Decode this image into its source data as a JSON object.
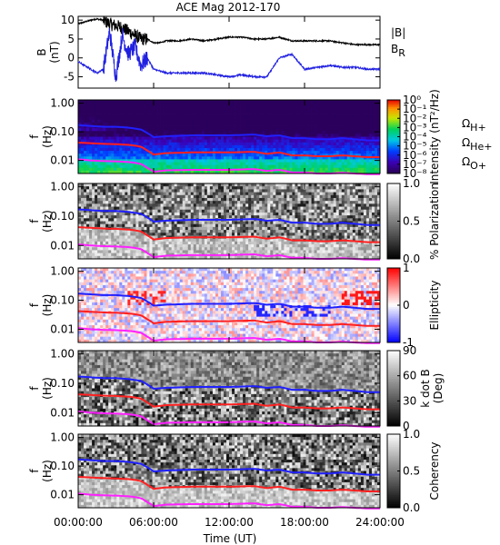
{
  "chart_data": {
    "title": "ACE Mag 2012-170",
    "type": "line",
    "x_axis": {
      "label": "Time (UT)",
      "ticks": [
        "00:00:00",
        "06:00:00",
        "12:00:00",
        "18:00:00",
        "24:00:00"
      ],
      "range_hours": [
        0,
        24
      ]
    },
    "panels": [
      {
        "name": "field",
        "type": "line",
        "ylabel_lines": [
          "B",
          "(nT)"
        ],
        "ylim": [
          -8,
          11
        ],
        "yticks": [
          "10",
          "5",
          "0",
          "-5"
        ],
        "legend": [
          {
            "label": "|B|",
            "color": "#000000"
          },
          {
            "label": "B",
            "sub": "R",
            "color": "#2020e0"
          }
        ],
        "series": [
          {
            "name": "|B|",
            "color": "#000000",
            "x": [
              0,
              0.5,
              1,
              1.5,
              2,
              2.5,
              3,
              3.5,
              4,
              4.5,
              5,
              5.5,
              6,
              6.5,
              7,
              8,
              9,
              10,
              11,
              12,
              13,
              14,
              15,
              16,
              17,
              18,
              19,
              20,
              21,
              22,
              23,
              24
            ],
            "y": [
              9,
              9.5,
              10,
              10.3,
              10,
              9,
              8.5,
              8,
              7,
              6,
              5,
              5,
              4,
              4,
              4.5,
              4.5,
              5,
              4.5,
              5,
              5.5,
              5.5,
              5,
              5,
              5.5,
              4.5,
              4.5,
              4.5,
              4.5,
              4,
              3.5,
              3.5,
              3.5
            ]
          },
          {
            "name": "B_R",
            "color": "#2020e0",
            "x": [
              0,
              0.5,
              1,
              1.5,
              2,
              2.5,
              3,
              3.5,
              4,
              4.5,
              5,
              5.5,
              6,
              6.5,
              7,
              8,
              9,
              10,
              11,
              12,
              13,
              14,
              15,
              16,
              17,
              18,
              19,
              20,
              21,
              22,
              23,
              24
            ],
            "y": [
              -1,
              -2,
              -3,
              -4,
              -3,
              7,
              -5,
              6,
              1,
              3,
              -2,
              0,
              -3,
              -3.5,
              -4,
              -4,
              -4,
              -4,
              -4.5,
              -5,
              -4.5,
              -5,
              -5,
              0,
              1,
              -3,
              -2.5,
              -2,
              -2.5,
              -2.5,
              -3,
              -3
            ]
          }
        ]
      },
      {
        "name": "intensity",
        "type": "heatmap",
        "ylabel_lines": [
          "f",
          "(Hz)"
        ],
        "cbar_label": "Intensity (nT²/Hz)",
        "cbar_ticks": [
          "10⁰",
          "10⁻¹",
          "10⁻²",
          "10⁻³",
          "10⁻⁴",
          "10⁻⁵",
          "10⁻⁶",
          "10⁻⁷",
          "10⁻⁸"
        ],
        "legend": [
          {
            "label": "Ω",
            "sub": "H+",
            "color": "#2020e0"
          },
          {
            "label": "Ω",
            "sub": "He+",
            "color": "#e02020"
          },
          {
            "label": "Ω",
            "sub": "O+",
            "color": "#e020e0"
          }
        ]
      },
      {
        "name": "polarization",
        "type": "heatmap",
        "ylabel_lines": [
          "f",
          "(Hz)"
        ],
        "cbar_label": "% Polarization",
        "cbar_ticks": [
          "1.0",
          "0.5",
          "0.0"
        ]
      },
      {
        "name": "ellipticity",
        "type": "heatmap",
        "ylabel_lines": [
          "f",
          "(Hz)"
        ],
        "cbar_label": "Ellipticity",
        "cbar_ticks": [
          "1",
          "0",
          "-1"
        ]
      },
      {
        "name": "kdotb",
        "type": "heatmap",
        "ylabel_lines": [
          "f",
          "(Hz)"
        ],
        "cbar_label_lines": [
          "k dot B",
          "(Deg)"
        ],
        "cbar_ticks": [
          "90",
          "60",
          "30",
          "0"
        ]
      },
      {
        "name": "coherency",
        "type": "heatmap",
        "ylabel_lines": [
          "f",
          "(Hz)"
        ],
        "cbar_label": "Coherency",
        "cbar_ticks": [
          "1.0",
          "0.5",
          "0.0"
        ]
      }
    ],
    "freq_axis": {
      "ticks": [
        "1.00",
        "0.10",
        "0.01"
      ],
      "range_hz": [
        0.0035,
        1.3
      ],
      "scale": "log"
    },
    "gyrofrequency_lines": [
      {
        "name": "ΩH+",
        "color": "#2020ff",
        "x": [
          0,
          1,
          2,
          3,
          4,
          4.5,
          5,
          5.5,
          6,
          7,
          9,
          12,
          14,
          15,
          16,
          17,
          18,
          19,
          20,
          21,
          22,
          23,
          24
        ],
        "y": [
          0.17,
          0.16,
          0.15,
          0.15,
          0.14,
          0.13,
          0.12,
          0.09,
          0.065,
          0.07,
          0.075,
          0.075,
          0.08,
          0.07,
          0.075,
          0.06,
          0.06,
          0.055,
          0.055,
          0.06,
          0.055,
          0.05,
          0.05
        ]
      },
      {
        "name": "ΩHe+",
        "color": "#ff2020",
        "x": [
          0,
          1,
          2,
          3,
          4,
          4.5,
          5,
          5.5,
          6,
          7,
          9,
          12,
          14,
          15,
          16,
          17,
          18,
          19,
          20,
          21,
          22,
          23,
          24
        ],
        "y": [
          0.042,
          0.04,
          0.038,
          0.037,
          0.035,
          0.033,
          0.03,
          0.022,
          0.016,
          0.018,
          0.019,
          0.019,
          0.02,
          0.017,
          0.019,
          0.015,
          0.015,
          0.014,
          0.014,
          0.015,
          0.014,
          0.013,
          0.013
        ]
      },
      {
        "name": "ΩO+",
        "color": "#ff20ff",
        "x": [
          0,
          1,
          2,
          3,
          4,
          4.5,
          5,
          5.5,
          6,
          7,
          9,
          12,
          14,
          15,
          16,
          17,
          18,
          19,
          20,
          21,
          22,
          23,
          24
        ],
        "y": [
          0.011,
          0.01,
          0.0095,
          0.0093,
          0.0088,
          0.0083,
          0.0075,
          0.0055,
          0.004,
          0.0045,
          0.0047,
          0.0047,
          0.005,
          0.0043,
          0.0047,
          0.0038,
          0.0038,
          0.0035,
          0.0035,
          0.0037,
          0.0035,
          0.0033,
          0.0033
        ]
      }
    ]
  }
}
